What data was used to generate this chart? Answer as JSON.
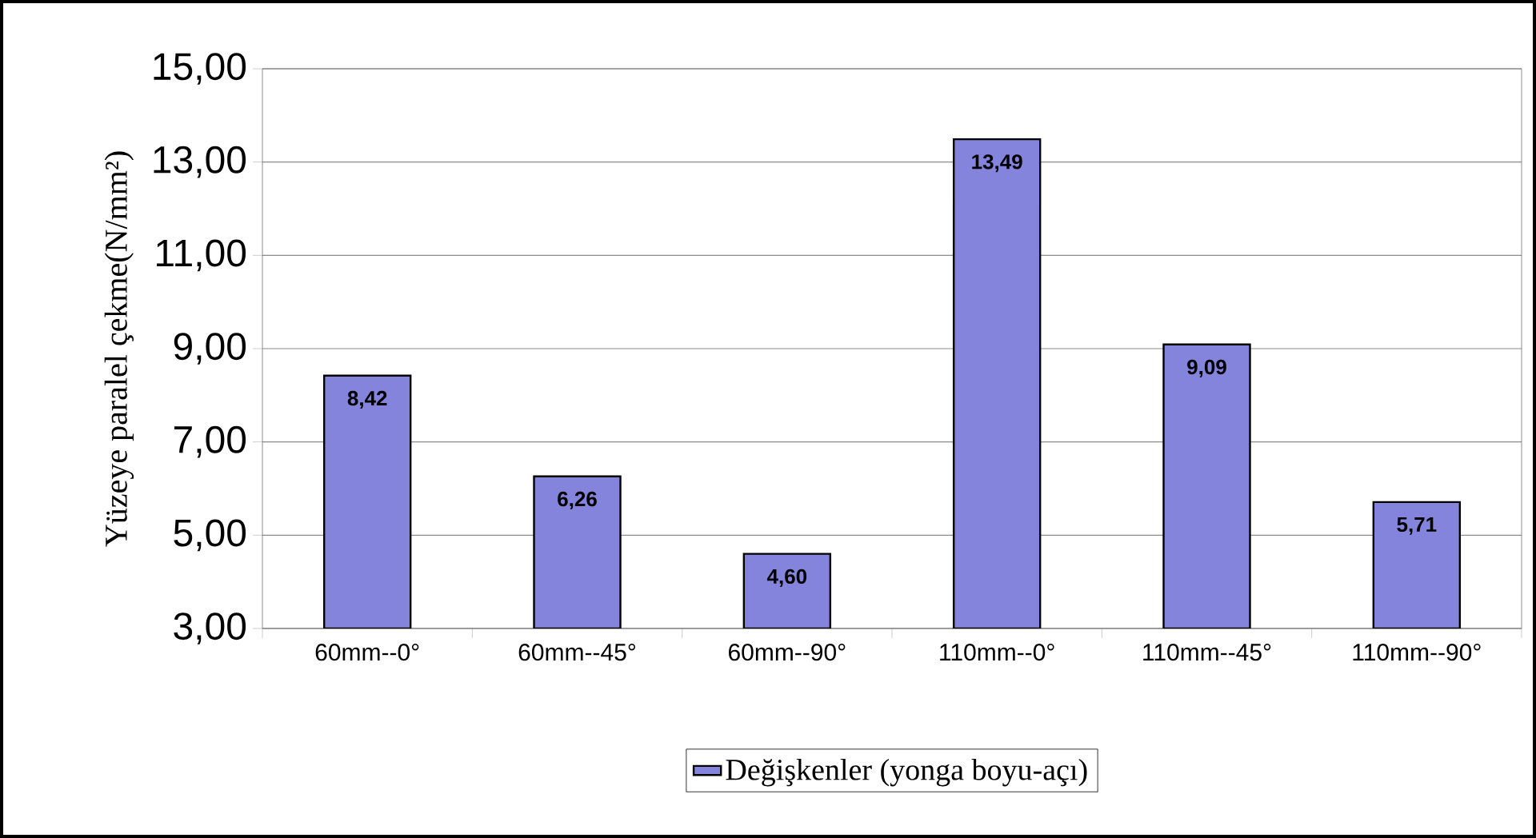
{
  "chart_data": {
    "type": "bar",
    "ylabel": "Yüzeye paralel çekme(N/mm²)",
    "categories": [
      "60mm--0°",
      "60mm--45°",
      "60mm--90°",
      "110mm--0°",
      "110mm--45°",
      "110mm--90°"
    ],
    "series": [
      {
        "name": "Değişkenler (yonga boyu-açı)",
        "color": "#8484dc",
        "values": [
          8.42,
          6.26,
          4.6,
          13.49,
          9.09,
          5.71
        ],
        "value_labels": [
          "8,42",
          "6,26",
          "4,60",
          "13,49",
          "9,09",
          "5,71"
        ]
      }
    ],
    "ylim": [
      3,
      15
    ],
    "yticks": [
      {
        "value": 3,
        "label": "3,00"
      },
      {
        "value": 5,
        "label": "5,00"
      },
      {
        "value": 7,
        "label": "7,00"
      },
      {
        "value": 9,
        "label": "9,00"
      },
      {
        "value": 11,
        "label": "11,00"
      },
      {
        "value": 13,
        "label": "13,00"
      },
      {
        "value": 15,
        "label": "15,00"
      }
    ],
    "grid": "y",
    "legend": "bottom"
  }
}
